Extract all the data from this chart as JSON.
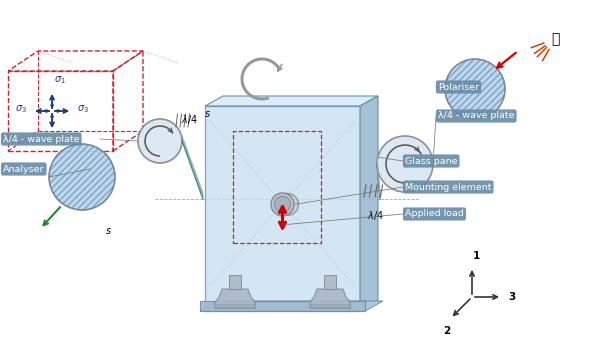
{
  "bg_color": "#ffffff",
  "label_bg_color": "#6a8ea8",
  "label_text_color": "#ffffff",
  "glass_front_color": "#c8dff0",
  "glass_top_color": "#d8eaf8",
  "glass_right_color": "#9ab8d0",
  "glass_edge_color": "#6a8ea8",
  "foot_color": "#aab8c8",
  "foot_edge_color": "#7a8898",
  "red_box_color": "#cc2222",
  "sigma_color": "#1a3a7a",
  "disk_hatch_fill": "#b8d4ec",
  "disk_hatch_line": "#4a7aaa",
  "disk_plain_fill": "#dce8f4",
  "disk_edge": "#888888",
  "mount_color": "#b0bbc8",
  "arrow_red": "#cc0000",
  "arrow_green": "#228833",
  "arrow_blue": "#2255aa",
  "arrow_gray": "#999999",
  "curved_arrow_color": "#999999",
  "coord_color": "#333333",
  "labels": {
    "polariser": "Polariser",
    "waveplate_right": "λ/4 - wave plate",
    "waveplate_left": "λ/4 - wave plate",
    "analyser": "Analyser",
    "glass_pane": "Glass pane",
    "mounting": "Mounting element",
    "applied_load": "Applied load"
  },
  "coord_labels": [
    "1",
    "2",
    "3"
  ],
  "stress_box_color": "#cc2233",
  "bulb_ray_color": "#cc4400"
}
